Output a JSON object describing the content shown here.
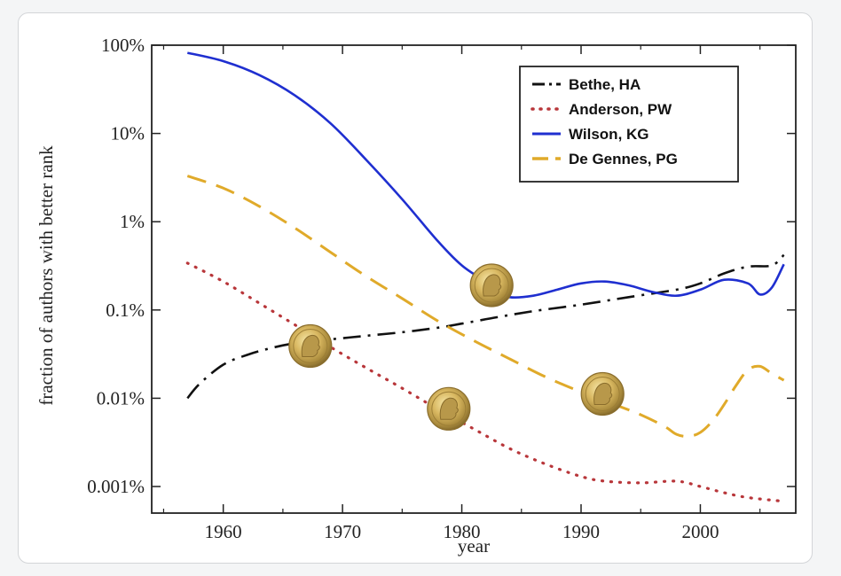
{
  "chart_data": {
    "type": "line",
    "xlabel": "year",
    "ylabel": "fraction of authors with better rank",
    "xlim": [
      1954,
      2008
    ],
    "ylim": [
      0.0005,
      100
    ],
    "yscale": "log",
    "x_ticks": [
      1960,
      1970,
      1980,
      1990,
      2000
    ],
    "x_tick_labels": [
      "1960",
      "1970",
      "1980",
      "1990",
      "2000"
    ],
    "y_ticks": [
      0.001,
      0.01,
      0.1,
      1,
      10,
      100
    ],
    "y_tick_labels": [
      "0.001%",
      "0.01%",
      "0.1%",
      "1%",
      "10%",
      "100%"
    ],
    "legend_position": "top-right",
    "series": [
      {
        "name": "Bethe, HA",
        "color": "#111111",
        "style": "dash-dot",
        "x": [
          1957,
          1958,
          1960,
          1962,
          1964,
          1966,
          1968,
          1970,
          1972,
          1975,
          1978,
          1980,
          1983,
          1986,
          1990,
          1994,
          1998,
          2000,
          2002,
          2004,
          2006,
          2007
        ],
        "y": [
          0.01,
          0.0145,
          0.024,
          0.031,
          0.037,
          0.042,
          0.045,
          0.048,
          0.051,
          0.056,
          0.063,
          0.07,
          0.083,
          0.097,
          0.115,
          0.14,
          0.17,
          0.2,
          0.26,
          0.31,
          0.32,
          0.42
        ]
      },
      {
        "name": "Anderson, PW",
        "color": "#b8363a",
        "style": "dotted",
        "x": [
          1957,
          1960,
          1963,
          1966,
          1969,
          1972,
          1975,
          1978,
          1981,
          1984,
          1987,
          1990,
          1992,
          1995,
          1998,
          2000,
          2002,
          2004,
          2007
        ],
        "y": [
          0.34,
          0.21,
          0.12,
          0.068,
          0.038,
          0.022,
          0.013,
          0.0075,
          0.0045,
          0.0027,
          0.0018,
          0.0013,
          0.00115,
          0.0011,
          0.00115,
          0.001,
          0.00085,
          0.00075,
          0.00068
        ]
      },
      {
        "name": "Wilson, KG",
        "color": "#1f2fd0",
        "style": "solid",
        "x": [
          1957,
          1960,
          1963,
          1966,
          1969,
          1972,
          1975,
          1978,
          1980,
          1982,
          1983,
          1984,
          1986,
          1988,
          1990,
          1992,
          1994,
          1996,
          1998,
          2000,
          2002,
          2004,
          2005,
          2006,
          2007
        ],
        "y": [
          82,
          66,
          46,
          27,
          13,
          5,
          1.8,
          0.6,
          0.32,
          0.21,
          0.17,
          0.14,
          0.145,
          0.17,
          0.2,
          0.21,
          0.19,
          0.16,
          0.145,
          0.17,
          0.22,
          0.2,
          0.15,
          0.18,
          0.33
        ]
      },
      {
        "name": "De Gennes, PG",
        "color": "#e0aa2a",
        "style": "dashed",
        "x": [
          1957,
          1960,
          1963,
          1966,
          1969,
          1972,
          1975,
          1978,
          1981,
          1984,
          1987,
          1990,
          1993,
          1995,
          1997,
          1998,
          1999,
          2000,
          2001,
          2002,
          2003,
          2004,
          2005,
          2006,
          2007
        ],
        "y": [
          3.3,
          2.4,
          1.5,
          0.85,
          0.45,
          0.24,
          0.135,
          0.075,
          0.045,
          0.028,
          0.0175,
          0.0118,
          0.0083,
          0.0065,
          0.0048,
          0.0039,
          0.0037,
          0.0041,
          0.0055,
          0.0085,
          0.014,
          0.021,
          0.023,
          0.019,
          0.016
        ]
      }
    ],
    "medals": [
      {
        "x": 1982.5,
        "y": 0.19
      },
      {
        "x": 1967.3,
        "y": 0.039
      },
      {
        "x": 1978.9,
        "y": 0.0076
      },
      {
        "x": 1991.8,
        "y": 0.0112
      }
    ]
  }
}
